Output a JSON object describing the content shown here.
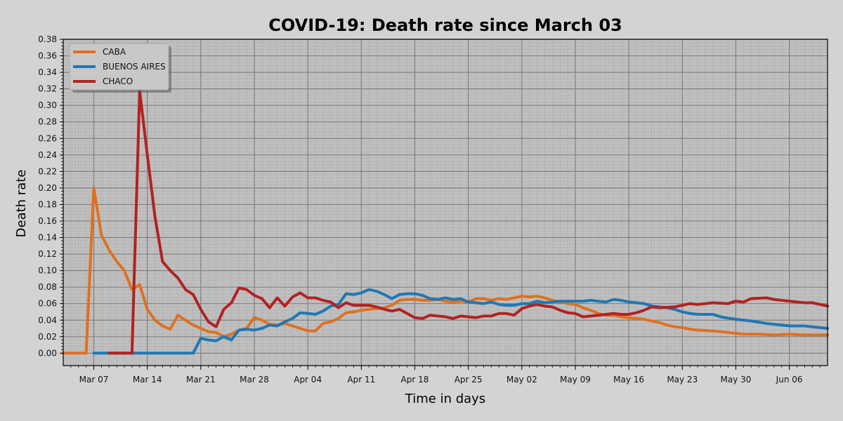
{
  "chart_data": {
    "type": "line",
    "title": "COVID-19: Death rate since March 03",
    "xlabel": "Time in days",
    "ylabel": "Death rate",
    "x_start": "2020-03-03",
    "x_end": "2020-06-11",
    "ylim": [
      -0.015,
      0.38
    ],
    "yticks": [
      0.0,
      0.02,
      0.04,
      0.06,
      0.08,
      0.1,
      0.12,
      0.14,
      0.16,
      0.18,
      0.2,
      0.22,
      0.24,
      0.26,
      0.28,
      0.3,
      0.32,
      0.34,
      0.36,
      0.38
    ],
    "ytick_labels": [
      "0.00",
      "0.02",
      "0.04",
      "0.06",
      "0.08",
      "0.10",
      "0.12",
      "0.14",
      "0.16",
      "0.18",
      "0.20",
      "0.22",
      "0.24",
      "0.26",
      "0.28",
      "0.30",
      "0.32",
      "0.34",
      "0.36",
      "0.38"
    ],
    "xticks": [
      "2020-03-07",
      "2020-03-14",
      "2020-03-21",
      "2020-03-28",
      "2020-04-04",
      "2020-04-11",
      "2020-04-18",
      "2020-04-25",
      "2020-05-02",
      "2020-05-09",
      "2020-05-16",
      "2020-05-23",
      "2020-05-30",
      "2020-06-06"
    ],
    "xtick_labels": [
      "Mar 07",
      "Mar 14",
      "Mar 21",
      "Mar 28",
      "Apr 04",
      "Apr 11",
      "Apr 18",
      "Apr 25",
      "May 02",
      "May 09",
      "May 16",
      "May 23",
      "May 30",
      "Jun 06"
    ],
    "grid": true,
    "legend_position": "top-left",
    "series": [
      {
        "name": "CABA",
        "color": "#e07020",
        "points": [
          [
            "2020-03-03",
            0.0
          ],
          [
            "2020-03-05",
            0.0
          ],
          [
            "2020-03-06",
            0.0
          ],
          [
            "2020-03-07",
            0.2
          ],
          [
            "2020-03-08",
            0.143
          ],
          [
            "2020-03-09",
            0.125
          ],
          [
            "2020-03-10",
            0.111
          ],
          [
            "2020-03-11",
            0.1
          ],
          [
            "2020-03-12",
            0.077
          ],
          [
            "2020-03-13",
            0.083
          ],
          [
            "2020-03-14",
            0.053
          ],
          [
            "2020-03-15",
            0.04
          ],
          [
            "2020-03-16",
            0.033
          ],
          [
            "2020-03-17",
            0.029
          ],
          [
            "2020-03-18",
            0.046
          ],
          [
            "2020-03-19",
            0.04
          ],
          [
            "2020-03-20",
            0.034
          ],
          [
            "2020-03-21",
            0.03
          ],
          [
            "2020-03-22",
            0.026
          ],
          [
            "2020-03-23",
            0.025
          ],
          [
            "2020-03-24",
            0.02
          ],
          [
            "2020-03-25",
            0.023
          ],
          [
            "2020-03-26",
            0.028
          ],
          [
            "2020-03-27",
            0.03
          ],
          [
            "2020-03-28",
            0.043
          ],
          [
            "2020-03-29",
            0.04
          ],
          [
            "2020-03-30",
            0.035
          ],
          [
            "2020-03-31",
            0.034
          ],
          [
            "2020-04-01",
            0.036
          ],
          [
            "2020-04-02",
            0.033
          ],
          [
            "2020-04-03",
            0.03
          ],
          [
            "2020-04-04",
            0.027
          ],
          [
            "2020-04-05",
            0.027
          ],
          [
            "2020-04-06",
            0.036
          ],
          [
            "2020-04-07",
            0.038
          ],
          [
            "2020-04-08",
            0.042
          ],
          [
            "2020-04-09",
            0.049
          ],
          [
            "2020-04-10",
            0.05
          ],
          [
            "2020-04-11",
            0.052
          ],
          [
            "2020-04-12",
            0.053
          ],
          [
            "2020-04-13",
            0.054
          ],
          [
            "2020-04-14",
            0.055
          ],
          [
            "2020-04-15",
            0.058
          ],
          [
            "2020-04-16",
            0.064
          ],
          [
            "2020-04-17",
            0.065
          ],
          [
            "2020-04-18",
            0.065
          ],
          [
            "2020-04-19",
            0.064
          ],
          [
            "2020-04-20",
            0.064
          ],
          [
            "2020-04-21",
            0.065
          ],
          [
            "2020-04-22",
            0.063
          ],
          [
            "2020-04-23",
            0.062
          ],
          [
            "2020-04-24",
            0.063
          ],
          [
            "2020-04-25",
            0.062
          ],
          [
            "2020-04-26",
            0.066
          ],
          [
            "2020-04-27",
            0.066
          ],
          [
            "2020-04-28",
            0.064
          ],
          [
            "2020-04-29",
            0.066
          ],
          [
            "2020-04-30",
            0.065
          ],
          [
            "2020-05-01",
            0.067
          ],
          [
            "2020-05-02",
            0.069
          ],
          [
            "2020-05-03",
            0.068
          ],
          [
            "2020-05-04",
            0.069
          ],
          [
            "2020-05-05",
            0.067
          ],
          [
            "2020-05-06",
            0.064
          ],
          [
            "2020-05-07",
            0.062
          ],
          [
            "2020-05-08",
            0.06
          ],
          [
            "2020-05-09",
            0.059
          ],
          [
            "2020-05-10",
            0.055
          ],
          [
            "2020-05-11",
            0.052
          ],
          [
            "2020-05-12",
            0.048
          ],
          [
            "2020-05-13",
            0.046
          ],
          [
            "2020-05-14",
            0.046
          ],
          [
            "2020-05-15",
            0.044
          ],
          [
            "2020-05-16",
            0.043
          ],
          [
            "2020-05-17",
            0.042
          ],
          [
            "2020-05-18",
            0.041
          ],
          [
            "2020-05-19",
            0.039
          ],
          [
            "2020-05-20",
            0.037
          ],
          [
            "2020-05-21",
            0.034
          ],
          [
            "2020-05-22",
            0.032
          ],
          [
            "2020-05-23",
            0.031
          ],
          [
            "2020-05-24",
            0.029
          ],
          [
            "2020-05-25",
            0.028
          ],
          [
            "2020-05-27",
            0.027
          ],
          [
            "2020-05-29",
            0.025
          ],
          [
            "2020-05-31",
            0.023
          ],
          [
            "2020-06-02",
            0.023
          ],
          [
            "2020-06-04",
            0.022
          ],
          [
            "2020-06-06",
            0.023
          ],
          [
            "2020-06-08",
            0.022
          ],
          [
            "2020-06-11",
            0.022
          ]
        ]
      },
      {
        "name": "BUENOS AIRES",
        "color": "#1f77b4",
        "points": [
          [
            "2020-03-07",
            0.0
          ],
          [
            "2020-03-12",
            0.0
          ],
          [
            "2020-03-18",
            0.0
          ],
          [
            "2020-03-20",
            0.0
          ],
          [
            "2020-03-21",
            0.018
          ],
          [
            "2020-03-22",
            0.016
          ],
          [
            "2020-03-23",
            0.015
          ],
          [
            "2020-03-24",
            0.02
          ],
          [
            "2020-03-25",
            0.016
          ],
          [
            "2020-03-26",
            0.028
          ],
          [
            "2020-03-27",
            0.029
          ],
          [
            "2020-03-28",
            0.028
          ],
          [
            "2020-03-29",
            0.03
          ],
          [
            "2020-03-30",
            0.034
          ],
          [
            "2020-03-31",
            0.033
          ],
          [
            "2020-04-01",
            0.038
          ],
          [
            "2020-04-02",
            0.042
          ],
          [
            "2020-04-03",
            0.049
          ],
          [
            "2020-04-04",
            0.048
          ],
          [
            "2020-04-05",
            0.047
          ],
          [
            "2020-04-06",
            0.051
          ],
          [
            "2020-04-07",
            0.057
          ],
          [
            "2020-04-08",
            0.059
          ],
          [
            "2020-04-09",
            0.072
          ],
          [
            "2020-04-10",
            0.071
          ],
          [
            "2020-04-11",
            0.073
          ],
          [
            "2020-04-12",
            0.077
          ],
          [
            "2020-04-13",
            0.075
          ],
          [
            "2020-04-14",
            0.071
          ],
          [
            "2020-04-15",
            0.066
          ],
          [
            "2020-04-16",
            0.071
          ],
          [
            "2020-04-17",
            0.072
          ],
          [
            "2020-04-18",
            0.072
          ],
          [
            "2020-04-19",
            0.07
          ],
          [
            "2020-04-20",
            0.066
          ],
          [
            "2020-04-21",
            0.065
          ],
          [
            "2020-04-22",
            0.067
          ],
          [
            "2020-04-23",
            0.065
          ],
          [
            "2020-04-24",
            0.066
          ],
          [
            "2020-04-25",
            0.062
          ],
          [
            "2020-04-26",
            0.061
          ],
          [
            "2020-04-27",
            0.06
          ],
          [
            "2020-04-28",
            0.062
          ],
          [
            "2020-04-29",
            0.059
          ],
          [
            "2020-04-30",
            0.058
          ],
          [
            "2020-05-01",
            0.058
          ],
          [
            "2020-05-02",
            0.06
          ],
          [
            "2020-05-03",
            0.06
          ],
          [
            "2020-05-04",
            0.063
          ],
          [
            "2020-05-05",
            0.061
          ],
          [
            "2020-05-06",
            0.062
          ],
          [
            "2020-05-07",
            0.063
          ],
          [
            "2020-05-08",
            0.063
          ],
          [
            "2020-05-09",
            0.063
          ],
          [
            "2020-05-10",
            0.063
          ],
          [
            "2020-05-11",
            0.064
          ],
          [
            "2020-05-12",
            0.063
          ],
          [
            "2020-05-13",
            0.062
          ],
          [
            "2020-05-14",
            0.065
          ],
          [
            "2020-05-15",
            0.064
          ],
          [
            "2020-05-16",
            0.062
          ],
          [
            "2020-05-17",
            0.061
          ],
          [
            "2020-05-18",
            0.06
          ],
          [
            "2020-05-19",
            0.057
          ],
          [
            "2020-05-20",
            0.056
          ],
          [
            "2020-05-21",
            0.055
          ],
          [
            "2020-05-22",
            0.053
          ],
          [
            "2020-05-23",
            0.05
          ],
          [
            "2020-05-24",
            0.048
          ],
          [
            "2020-05-25",
            0.047
          ],
          [
            "2020-05-27",
            0.047
          ],
          [
            "2020-05-28",
            0.044
          ],
          [
            "2020-05-30",
            0.041
          ],
          [
            "2020-06-01",
            0.039
          ],
          [
            "2020-06-03",
            0.036
          ],
          [
            "2020-06-05",
            0.034
          ],
          [
            "2020-06-06",
            0.033
          ],
          [
            "2020-06-08",
            0.033
          ],
          [
            "2020-06-09",
            0.032
          ],
          [
            "2020-06-11",
            0.03
          ]
        ]
      },
      {
        "name": "CHACO",
        "color": "#b22222",
        "points": [
          [
            "2020-03-09",
            0.0
          ],
          [
            "2020-03-12",
            0.0
          ],
          [
            "2020-03-13",
            0.318
          ],
          [
            "2020-03-14",
            0.24
          ],
          [
            "2020-03-15",
            0.165
          ],
          [
            "2020-03-16",
            0.111
          ],
          [
            "2020-03-17",
            0.1
          ],
          [
            "2020-03-18",
            0.091
          ],
          [
            "2020-03-19",
            0.077
          ],
          [
            "2020-03-20",
            0.071
          ],
          [
            "2020-03-21",
            0.053
          ],
          [
            "2020-03-22",
            0.038
          ],
          [
            "2020-03-23",
            0.032
          ],
          [
            "2020-03-24",
            0.053
          ],
          [
            "2020-03-25",
            0.061
          ],
          [
            "2020-03-26",
            0.079
          ],
          [
            "2020-03-27",
            0.077
          ],
          [
            "2020-03-28",
            0.07
          ],
          [
            "2020-03-29",
            0.066
          ],
          [
            "2020-03-30",
            0.055
          ],
          [
            "2020-03-31",
            0.067
          ],
          [
            "2020-04-01",
            0.057
          ],
          [
            "2020-04-02",
            0.068
          ],
          [
            "2020-04-03",
            0.073
          ],
          [
            "2020-04-04",
            0.067
          ],
          [
            "2020-04-05",
            0.067
          ],
          [
            "2020-04-06",
            0.064
          ],
          [
            "2020-04-07",
            0.062
          ],
          [
            "2020-04-08",
            0.055
          ],
          [
            "2020-04-09",
            0.061
          ],
          [
            "2020-04-10",
            0.058
          ],
          [
            "2020-04-11",
            0.058
          ],
          [
            "2020-04-12",
            0.058
          ],
          [
            "2020-04-13",
            0.056
          ],
          [
            "2020-04-14",
            0.053
          ],
          [
            "2020-04-15",
            0.051
          ],
          [
            "2020-04-16",
            0.053
          ],
          [
            "2020-04-17",
            0.048
          ],
          [
            "2020-04-18",
            0.043
          ],
          [
            "2020-04-19",
            0.042
          ],
          [
            "2020-04-20",
            0.046
          ],
          [
            "2020-04-21",
            0.045
          ],
          [
            "2020-04-22",
            0.044
          ],
          [
            "2020-04-23",
            0.042
          ],
          [
            "2020-04-24",
            0.045
          ],
          [
            "2020-04-25",
            0.044
          ],
          [
            "2020-04-26",
            0.043
          ],
          [
            "2020-04-27",
            0.045
          ],
          [
            "2020-04-28",
            0.045
          ],
          [
            "2020-04-29",
            0.048
          ],
          [
            "2020-04-30",
            0.048
          ],
          [
            "2020-05-01",
            0.046
          ],
          [
            "2020-05-02",
            0.054
          ],
          [
            "2020-05-03",
            0.057
          ],
          [
            "2020-05-04",
            0.059
          ],
          [
            "2020-05-05",
            0.057
          ],
          [
            "2020-05-06",
            0.056
          ],
          [
            "2020-05-07",
            0.052
          ],
          [
            "2020-05-08",
            0.049
          ],
          [
            "2020-05-09",
            0.048
          ],
          [
            "2020-05-10",
            0.044
          ],
          [
            "2020-05-11",
            0.045
          ],
          [
            "2020-05-12",
            0.046
          ],
          [
            "2020-05-13",
            0.047
          ],
          [
            "2020-05-14",
            0.048
          ],
          [
            "2020-05-15",
            0.047
          ],
          [
            "2020-05-16",
            0.047
          ],
          [
            "2020-05-17",
            0.049
          ],
          [
            "2020-05-18",
            0.052
          ],
          [
            "2020-05-19",
            0.056
          ],
          [
            "2020-05-20",
            0.055
          ],
          [
            "2020-05-22",
            0.056
          ],
          [
            "2020-05-23",
            0.058
          ],
          [
            "2020-05-24",
            0.06
          ],
          [
            "2020-05-25",
            0.059
          ],
          [
            "2020-05-26",
            0.06
          ],
          [
            "2020-05-27",
            0.061
          ],
          [
            "2020-05-29",
            0.06
          ],
          [
            "2020-05-30",
            0.063
          ],
          [
            "2020-05-31",
            0.062
          ],
          [
            "2020-06-01",
            0.066
          ],
          [
            "2020-06-03",
            0.067
          ],
          [
            "2020-06-04",
            0.065
          ],
          [
            "2020-06-06",
            0.063
          ],
          [
            "2020-06-07",
            0.062
          ],
          [
            "2020-06-08",
            0.061
          ],
          [
            "2020-06-09",
            0.061
          ],
          [
            "2020-06-11",
            0.057
          ]
        ]
      }
    ]
  }
}
